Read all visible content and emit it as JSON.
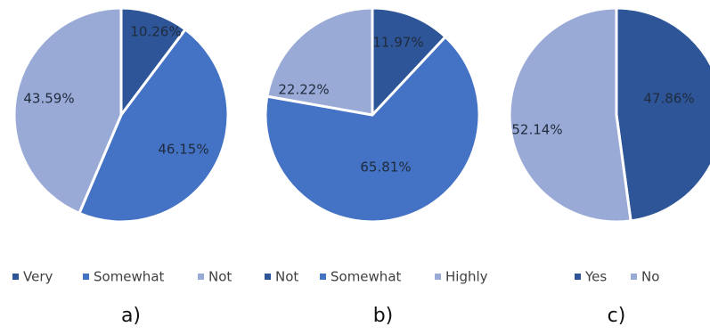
{
  "chart_data": [
    {
      "type": "pie",
      "caption": "a)",
      "slices": [
        {
          "label": "Very",
          "value": 10.26,
          "display": "10.26%",
          "color": "#2e5597"
        },
        {
          "label": "Somewhat",
          "value": 46.15,
          "display": "46.15%",
          "color": "#4472c4"
        },
        {
          "label": "Not",
          "value": 43.59,
          "display": "43.59%",
          "color": "#9aaad6"
        }
      ],
      "legend_position": "bottom"
    },
    {
      "type": "pie",
      "caption": "b)",
      "slices": [
        {
          "label": "Not",
          "value": 11.97,
          "display": "11.97%",
          "color": "#2e5597"
        },
        {
          "label": "Somewhat",
          "value": 65.81,
          "display": "65.81%",
          "color": "#4472c4"
        },
        {
          "label": "Highly",
          "value": 22.22,
          "display": "22.22%",
          "color": "#9aaad6"
        }
      ],
      "legend_position": "bottom"
    },
    {
      "type": "pie",
      "caption": "c)",
      "slices": [
        {
          "label": "Yes",
          "value": 47.86,
          "display": "47.86%",
          "color": "#2e5597"
        },
        {
          "label": "No",
          "value": 52.14,
          "display": "52.14%",
          "color": "#9aaad6"
        }
      ],
      "legend_position": "bottom"
    }
  ]
}
